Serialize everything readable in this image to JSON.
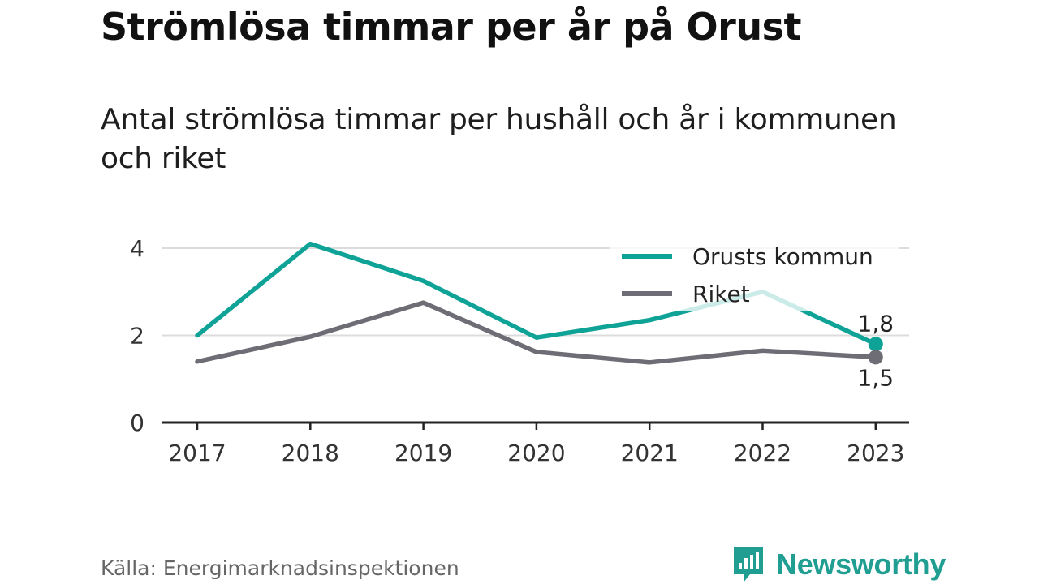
{
  "title": "Strömlösa timmar per år på Orust",
  "subtitle": "Antal strömlösa timmar per hushåll och år i kommunen och riket",
  "source": "Källa: Energimarknadsinspektionen",
  "brand": "Newsworthy",
  "colors": {
    "orust": "#0fa397",
    "riket": "#6e6d75",
    "grid": "#dcdcdc",
    "axis": "#222222",
    "brand": "#1f9e91"
  },
  "chart_data": {
    "type": "line",
    "x": [
      "2017",
      "2018",
      "2019",
      "2020",
      "2021",
      "2022",
      "2023"
    ],
    "series": [
      {
        "name": "Orusts kommun",
        "values": [
          2.0,
          4.1,
          3.25,
          1.95,
          2.35,
          3.0,
          1.8
        ]
      },
      {
        "name": "Riket",
        "values": [
          1.4,
          1.97,
          2.75,
          1.62,
          1.38,
          1.65,
          1.5
        ]
      }
    ],
    "yticks": [
      "0",
      "2",
      "4"
    ],
    "ylim": [
      0,
      4
    ],
    "end_labels": [
      "1,8",
      "1,5"
    ],
    "grid": true,
    "legend": "top-right"
  }
}
